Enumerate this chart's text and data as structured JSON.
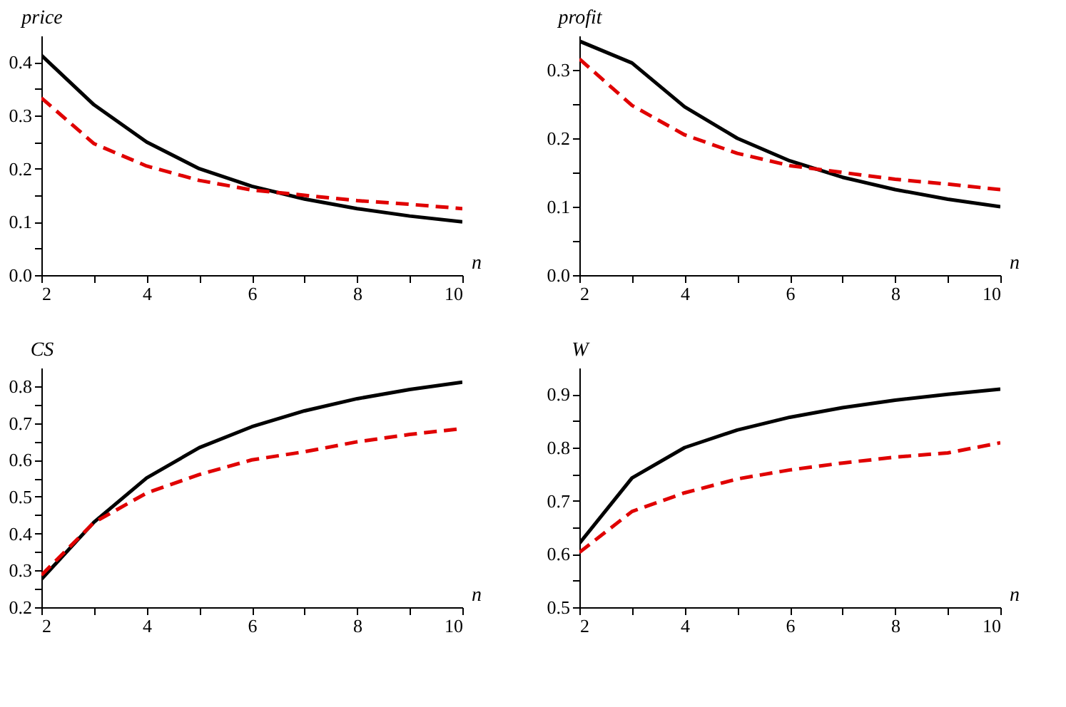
{
  "chart_data": [
    {
      "type": "line",
      "xlabel": "n",
      "ylabel": "price",
      "x": [
        2,
        3,
        4,
        5,
        6,
        7,
        8,
        9,
        10
      ],
      "xlim": [
        2,
        10
      ],
      "xticks": [
        2,
        {
          "value": 3,
          "label": null
        },
        4,
        {
          "value": 5,
          "label": null
        },
        6,
        {
          "value": 7,
          "label": null
        },
        8,
        {
          "value": 9,
          "label": null
        },
        10
      ],
      "ylim": [
        0,
        0.45
      ],
      "yticks": [
        {
          "value": 0,
          "label": "0.0"
        },
        {
          "value": 0.05,
          "label": null
        },
        0.1,
        {
          "value": 0.15,
          "label": null
        },
        0.2,
        {
          "value": 0.25,
          "label": null
        },
        0.3,
        {
          "value": 0.35,
          "label": null
        },
        0.4
      ],
      "grid": false,
      "legend": false,
      "series": [
        {
          "color": "#000000",
          "line_style": "solid",
          "values": [
            0.413,
            0.32,
            0.25,
            0.2,
            0.167,
            0.143,
            0.125,
            0.111,
            0.1
          ]
        },
        {
          "color": "#e00000",
          "line_style": "dashed",
          "values": [
            0.333,
            0.247,
            0.205,
            0.178,
            0.16,
            0.15,
            0.14,
            0.133,
            0.125
          ]
        }
      ]
    },
    {
      "type": "line",
      "xlabel": "n",
      "ylabel": "profit",
      "x": [
        2,
        3,
        4,
        5,
        6,
        7,
        8,
        9,
        10
      ],
      "xlim": [
        2,
        10
      ],
      "xticks": [
        2,
        {
          "value": 3,
          "label": null
        },
        4,
        {
          "value": 5,
          "label": null
        },
        6,
        {
          "value": 7,
          "label": null
        },
        8,
        {
          "value": 9,
          "label": null
        },
        10
      ],
      "ylim": [
        0,
        0.35
      ],
      "yticks": [
        {
          "value": 0,
          "label": "0.0"
        },
        {
          "value": 0.05,
          "label": null
        },
        0.1,
        {
          "value": 0.15,
          "label": null
        },
        0.2,
        {
          "value": 0.25,
          "label": null
        },
        0.3
      ],
      "grid": false,
      "legend": false,
      "series": [
        {
          "color": "#000000",
          "line_style": "solid",
          "values": [
            0.342,
            0.31,
            0.246,
            0.2,
            0.167,
            0.143,
            0.125,
            0.111,
            0.1
          ]
        },
        {
          "color": "#e00000",
          "line_style": "dashed",
          "values": [
            0.316,
            0.248,
            0.205,
            0.178,
            0.16,
            0.15,
            0.14,
            0.133,
            0.125
          ]
        }
      ]
    },
    {
      "type": "line",
      "xlabel": "n",
      "ylabel": "CS",
      "x": [
        2,
        3,
        4,
        5,
        6,
        7,
        8,
        9,
        10
      ],
      "xlim": [
        2,
        10
      ],
      "xticks": [
        2,
        {
          "value": 3,
          "label": null
        },
        4,
        {
          "value": 5,
          "label": null
        },
        6,
        {
          "value": 7,
          "label": null
        },
        8,
        {
          "value": 9,
          "label": null
        },
        10
      ],
      "ylim": [
        0.2,
        0.85
      ],
      "yticks": [
        0.2,
        {
          "value": 0.25,
          "label": null
        },
        0.3,
        {
          "value": 0.35,
          "label": null
        },
        0.4,
        {
          "value": 0.45,
          "label": null
        },
        0.5,
        {
          "value": 0.55,
          "label": null
        },
        0.6,
        {
          "value": 0.65,
          "label": null
        },
        0.7,
        {
          "value": 0.75,
          "label": null
        },
        0.8
      ],
      "grid": false,
      "legend": false,
      "series": [
        {
          "color": "#000000",
          "line_style": "solid",
          "values": [
            0.276,
            0.431,
            0.551,
            0.633,
            0.69,
            0.733,
            0.766,
            0.791,
            0.811
          ]
        },
        {
          "color": "#e00000",
          "line_style": "dashed",
          "values": [
            0.287,
            0.43,
            0.51,
            0.56,
            0.6,
            0.622,
            0.649,
            0.669,
            0.685
          ]
        }
      ]
    },
    {
      "type": "line",
      "xlabel": "n",
      "ylabel": "W",
      "x": [
        2,
        3,
        4,
        5,
        6,
        7,
        8,
        9,
        10
      ],
      "xlim": [
        2,
        10
      ],
      "xticks": [
        2,
        {
          "value": 3,
          "label": null
        },
        4,
        {
          "value": 5,
          "label": null
        },
        6,
        {
          "value": 7,
          "label": null
        },
        8,
        {
          "value": 9,
          "label": null
        },
        10
      ],
      "ylim": [
        0.5,
        0.95
      ],
      "yticks": [
        0.5,
        {
          "value": 0.55,
          "label": null
        },
        0.6,
        {
          "value": 0.65,
          "label": null
        },
        0.7,
        {
          "value": 0.75,
          "label": null
        },
        0.8,
        {
          "value": 0.85,
          "label": null
        },
        0.9
      ],
      "grid": false,
      "legend": false,
      "series": [
        {
          "color": "#000000",
          "line_style": "solid",
          "values": [
            0.62,
            0.743,
            0.8,
            0.833,
            0.857,
            0.875,
            0.889,
            0.9,
            0.91
          ]
        },
        {
          "color": "#e00000",
          "line_style": "dashed",
          "values": [
            0.603,
            0.68,
            0.715,
            0.741,
            0.758,
            0.771,
            0.782,
            0.79,
            0.809
          ]
        }
      ]
    }
  ]
}
